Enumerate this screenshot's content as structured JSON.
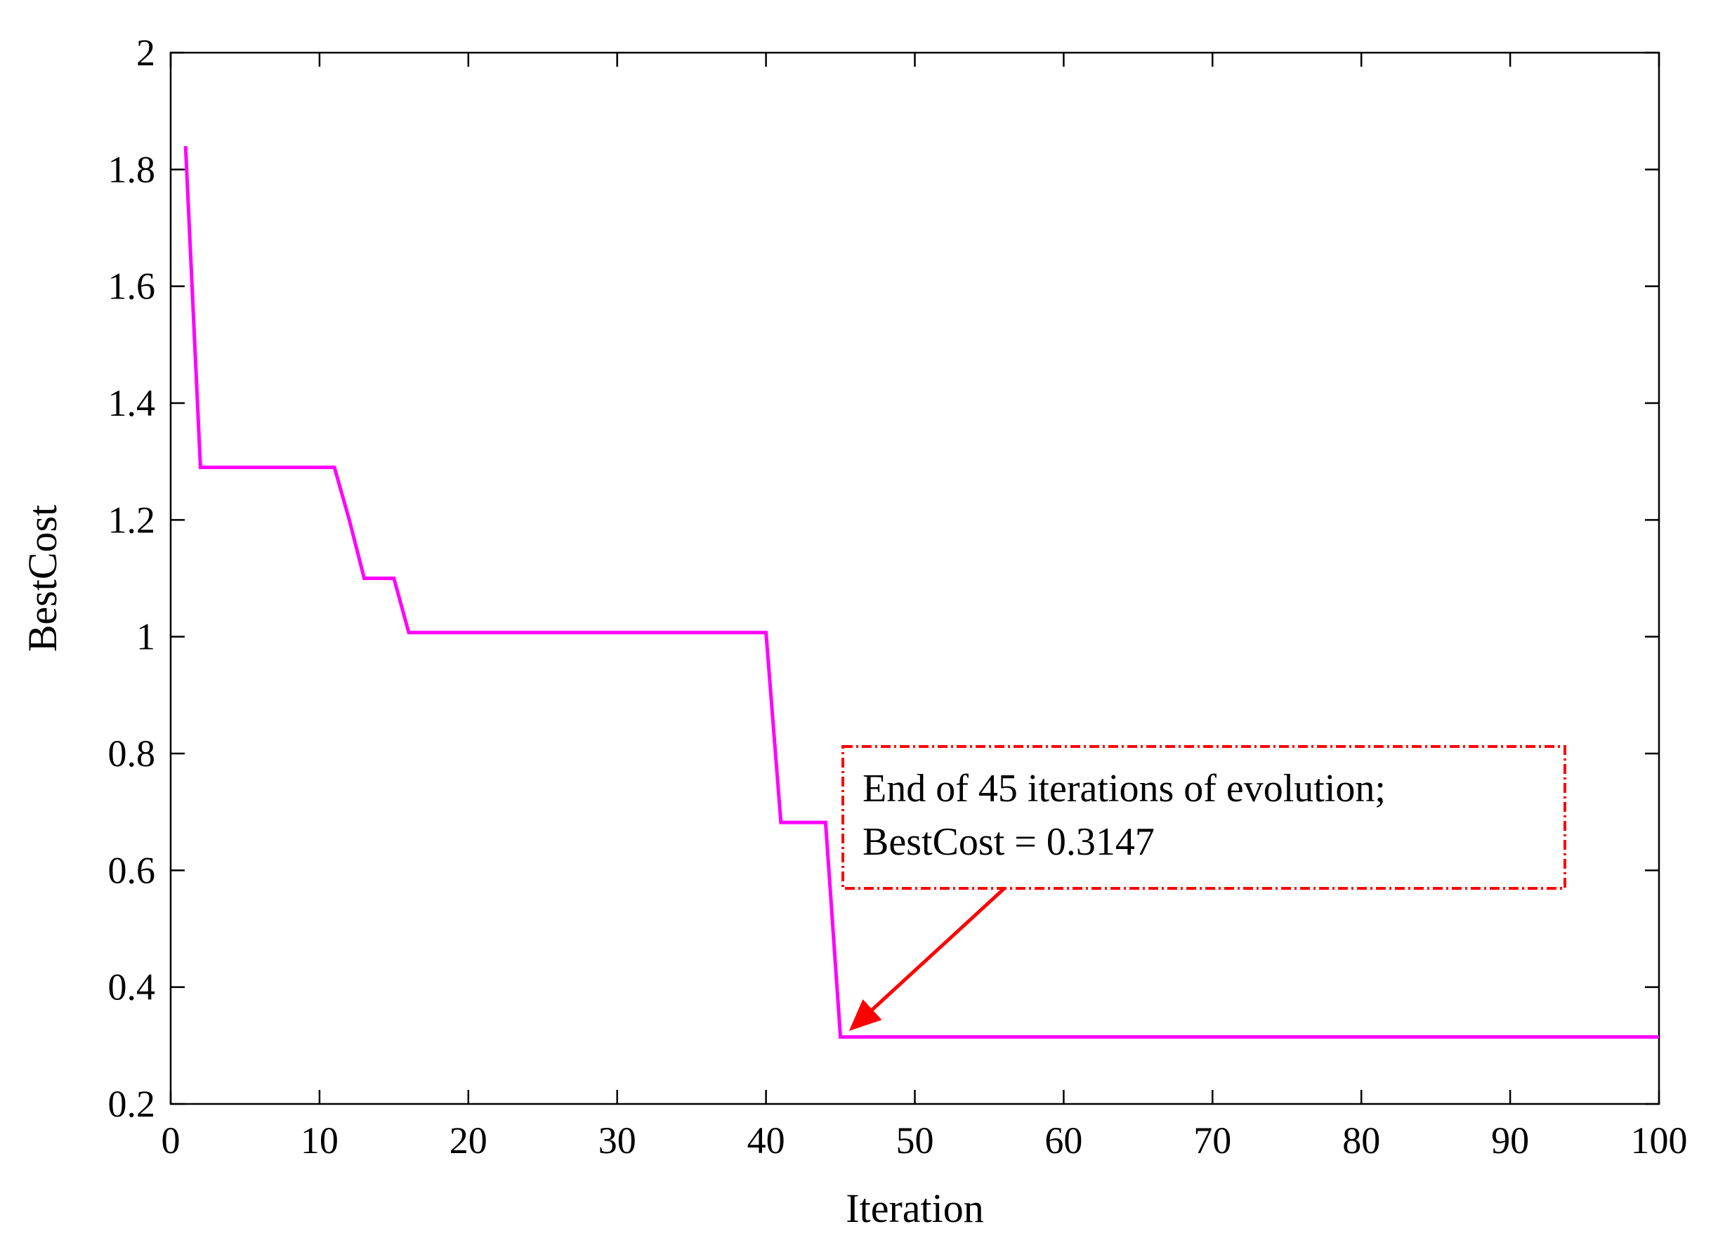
{
  "chart_data": {
    "type": "line",
    "xlabel": "Iteration",
    "ylabel": "BestCost",
    "xlim": [
      0,
      100
    ],
    "ylim": [
      0.2,
      2
    ],
    "xticks": [
      0,
      10,
      20,
      30,
      40,
      50,
      60,
      70,
      80,
      90,
      100
    ],
    "yticks": [
      0.2,
      0.4,
      0.6,
      0.8,
      1,
      1.2,
      1.4,
      1.6,
      1.8,
      2
    ],
    "xtick_labels": [
      "0",
      "10",
      "20",
      "30",
      "40",
      "50",
      "60",
      "70",
      "80",
      "90",
      "100"
    ],
    "ytick_labels": [
      "0.2",
      "0.4",
      "0.6",
      "0.8",
      "1",
      "1.2",
      "1.4",
      "1.6",
      "1.8",
      "2"
    ],
    "grid": false,
    "series": [
      {
        "color": "#ff00ff",
        "x": [
          1,
          2,
          11,
          12,
          13,
          15,
          16,
          40,
          41,
          44,
          45,
          100
        ],
        "y": [
          1.84,
          1.29,
          1.29,
          1.2,
          1.1,
          1.1,
          1.007,
          1.007,
          0.682,
          0.682,
          0.3147,
          0.3147
        ]
      }
    ],
    "annotation": {
      "lines": [
        "End of 45 iterations of evolution;",
        "BestCost = 0.3147"
      ],
      "point": {
        "x": 45,
        "y": 0.3147
      },
      "color": "#ff0000"
    }
  }
}
